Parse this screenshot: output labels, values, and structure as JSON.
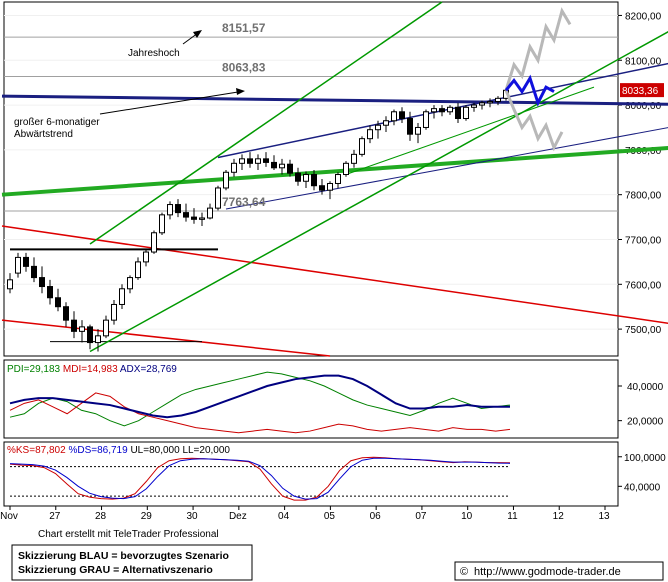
{
  "chart_data": [
    {
      "panel": "price",
      "type": "candlestick",
      "ylim": [
        7440,
        8230
      ],
      "y_ticks": [
        {
          "value": 7500,
          "label": "7500,00"
        },
        {
          "value": 7600,
          "label": "7600,00"
        },
        {
          "value": 7700,
          "label": "7700,00"
        },
        {
          "value": 7800,
          "label": "7800,00"
        },
        {
          "value": 7900,
          "label": "7900,00"
        },
        {
          "value": 8000,
          "label": "8000,00"
        },
        {
          "value": 8100,
          "label": "8100,00"
        },
        {
          "value": 8200,
          "label": "8200,00"
        }
      ],
      "last_price": {
        "value": 8033.36,
        "label": "8033,36"
      },
      "levels": [
        {
          "value": 8151.57,
          "label": "8151,57"
        },
        {
          "value": 8063.83,
          "label": "8063,83"
        },
        {
          "value": 7763.64,
          "label": "7763,64"
        }
      ],
      "annotations": [
        {
          "text": "Jahreshoch"
        },
        {
          "line1": "großer 6-monatiger",
          "line2": "Abwärtstrend"
        }
      ],
      "ohlc": [
        [
          7590,
          7625,
          7580,
          7610
        ],
        [
          7625,
          7670,
          7615,
          7660
        ],
        [
          7660,
          7670,
          7628,
          7640
        ],
        [
          7640,
          7660,
          7605,
          7615
        ],
        [
          7615,
          7640,
          7580,
          7595
        ],
        [
          7595,
          7610,
          7555,
          7570
        ],
        [
          7570,
          7590,
          7540,
          7550
        ],
        [
          7550,
          7560,
          7505,
          7520
        ],
        [
          7520,
          7540,
          7480,
          7495
        ],
        [
          7495,
          7520,
          7470,
          7505
        ],
        [
          7505,
          7510,
          7455,
          7470
        ],
        [
          7470,
          7500,
          7450,
          7485
        ],
        [
          7485,
          7530,
          7480,
          7520
        ],
        [
          7520,
          7565,
          7510,
          7555
        ],
        [
          7555,
          7600,
          7545,
          7590
        ],
        [
          7590,
          7620,
          7580,
          7615
        ],
        [
          7615,
          7660,
          7610,
          7650
        ],
        [
          7650,
          7680,
          7640,
          7672
        ],
        [
          7672,
          7720,
          7668,
          7715
        ],
        [
          7715,
          7760,
          7710,
          7755
        ],
        [
          7755,
          7785,
          7745,
          7778
        ],
        [
          7778,
          7790,
          7750,
          7760
        ],
        [
          7760,
          7780,
          7740,
          7750
        ],
        [
          7750,
          7770,
          7735,
          7745
        ],
        [
          7745,
          7760,
          7730,
          7748
        ],
        [
          7748,
          7780,
          7745,
          7770
        ],
        [
          7770,
          7820,
          7765,
          7815
        ],
        [
          7815,
          7855,
          7810,
          7850
        ],
        [
          7850,
          7880,
          7840,
          7870
        ],
        [
          7870,
          7890,
          7855,
          7880
        ],
        [
          7880,
          7895,
          7860,
          7870
        ],
        [
          7870,
          7890,
          7855,
          7880
        ],
        [
          7880,
          7895,
          7862,
          7872
        ],
        [
          7872,
          7888,
          7855,
          7860
        ],
        [
          7860,
          7880,
          7845,
          7868
        ],
        [
          7868,
          7878,
          7840,
          7848
        ],
        [
          7848,
          7860,
          7820,
          7830
        ],
        [
          7830,
          7852,
          7815,
          7845
        ],
        [
          7845,
          7855,
          7810,
          7820
        ],
        [
          7820,
          7835,
          7800,
          7810
        ],
        [
          7810,
          7830,
          7790,
          7825
        ],
        [
          7825,
          7850,
          7815,
          7845
        ],
        [
          7845,
          7875,
          7840,
          7870
        ],
        [
          7870,
          7900,
          7860,
          7890
        ],
        [
          7890,
          7930,
          7885,
          7925
        ],
        [
          7925,
          7955,
          7915,
          7945
        ],
        [
          7945,
          7965,
          7925,
          7955
        ],
        [
          7955,
          7975,
          7940,
          7965
        ],
        [
          7965,
          7990,
          7955,
          7985
        ],
        [
          7985,
          7995,
          7960,
          7970
        ],
        [
          7970,
          7985,
          7920,
          7935
        ],
        [
          7935,
          7960,
          7915,
          7950
        ],
        [
          7950,
          7990,
          7945,
          7985
        ],
        [
          7985,
          8000,
          7970,
          7992
        ],
        [
          7992,
          8000,
          7975,
          7985
        ],
        [
          7985,
          8000,
          7978,
          7995
        ],
        [
          7995,
          8005,
          7960,
          7970
        ],
        [
          7970,
          8000,
          7965,
          7995
        ],
        [
          7995,
          8005,
          7985,
          8000
        ],
        [
          8000,
          8010,
          7990,
          8005
        ],
        [
          8005,
          8015,
          7995,
          8008
        ],
        [
          8008,
          8020,
          8000,
          8015
        ],
        [
          8015,
          8040,
          8010,
          8033
        ]
      ],
      "scenario_blue": [
        8033,
        8055,
        8030,
        8060,
        8005,
        8040,
        8030
      ],
      "scenario_gray": {
        "up": [
          8033,
          8090,
          8065,
          8130,
          8100,
          8175,
          8145,
          8210,
          8180
        ],
        "down": [
          8033,
          7990,
          7950,
          7975,
          7925,
          7955,
          7905,
          7940
        ]
      }
    },
    {
      "panel": "dmi",
      "type": "line",
      "title": "PDI=29,183 MDI=14,983 ADX=28,769",
      "ylim": [
        10,
        55
      ],
      "y_ticks": [
        {
          "value": 40,
          "label": "40,0000"
        },
        {
          "value": 20,
          "label": "20,0000"
        }
      ],
      "series": [
        {
          "name": "PDI",
          "label": "PDI=29,183",
          "color": "#008000",
          "values": [
            22,
            24,
            30,
            33,
            31,
            26,
            24,
            20,
            17,
            20,
            25,
            30,
            35,
            38,
            40,
            42,
            44,
            46,
            48,
            47,
            45,
            43,
            40,
            36,
            32,
            29,
            27,
            25,
            23,
            26,
            30,
            33,
            30,
            27,
            28,
            29
          ]
        },
        {
          "name": "MDI",
          "label": "MDI=14,983",
          "color": "#cc0000",
          "values": [
            26,
            30,
            32,
            28,
            24,
            30,
            36,
            34,
            28,
            24,
            22,
            20,
            18,
            16,
            15,
            14,
            13,
            14,
            15,
            14,
            13,
            14,
            16,
            18,
            17,
            15,
            14,
            15,
            16,
            15,
            14,
            16,
            15,
            15,
            14,
            15
          ]
        },
        {
          "name": "ADX",
          "label": "ADX=28,769",
          "color": "#000080",
          "values": [
            30,
            32,
            33,
            33,
            32,
            31,
            30,
            29,
            27,
            25,
            23,
            22,
            23,
            25,
            28,
            31,
            34,
            37,
            40,
            42,
            44,
            45,
            46,
            46,
            44,
            40,
            35,
            30,
            27,
            27,
            28,
            28,
            29,
            28,
            28,
            28
          ]
        }
      ]
    },
    {
      "panel": "stochastic",
      "type": "line",
      "title": "%KS=87,802 %DS=86,719 UL=80,000 LL=20,000",
      "ylim": [
        0,
        130
      ],
      "y_ticks": [
        {
          "value": 100,
          "label": "100,0000"
        },
        {
          "value": 40,
          "label": "40,0000"
        }
      ],
      "upper_limit": 80,
      "lower_limit": 20,
      "series": [
        {
          "name": "%KS",
          "label": "%KS=87,802",
          "color": "#cc0000",
          "values": [
            85,
            83,
            82,
            78,
            66,
            45,
            25,
            18,
            15,
            14,
            16,
            25,
            50,
            78,
            92,
            96,
            97,
            96,
            95,
            94,
            92,
            90,
            75,
            45,
            20,
            12,
            12,
            18,
            40,
            72,
            92,
            98,
            99,
            98,
            96,
            95,
            94,
            92,
            90,
            88,
            90,
            89,
            88,
            88,
            87.8
          ]
        },
        {
          "name": "%DS",
          "label": "%DS=86,719",
          "color": "#0000cc",
          "values": [
            86,
            85,
            84,
            81,
            73,
            58,
            40,
            26,
            19,
            16,
            15,
            19,
            35,
            60,
            82,
            92,
            95,
            96,
            95,
            94,
            93,
            91,
            82,
            62,
            36,
            20,
            14,
            15,
            28,
            55,
            80,
            93,
            97,
            97,
            96,
            95,
            94,
            93,
            91,
            89,
            89,
            89,
            88,
            87,
            86.7
          ]
        }
      ]
    },
    {
      "panel": "x-axis",
      "type": "axis",
      "x_ticks": [
        "Nov",
        "27",
        "28",
        "29",
        "30",
        "Dez",
        "04",
        "05",
        "06",
        "07",
        "10",
        "11",
        "12",
        "13"
      ]
    }
  ],
  "footer": {
    "credit": "Chart erstellt mit TeleTrader Professional",
    "legend_line1": "Skizzierung BLAU = bevorzugtes Szenario",
    "legend_line2": "Skizzierung GRAU = Alternativszenario",
    "url": "http://www.godmode-trader.de",
    "copyright_symbol": "©"
  },
  "colors": {
    "bull_candle": "#ffffff",
    "bear_candle": "#000000",
    "green_channel": "#009900",
    "thick_green": "#22aa22",
    "navy_trend": "#1a1f80",
    "red_trend": "#dd0000",
    "scenario_blue": "#1010dd",
    "scenario_gray": "#b8b8b8",
    "last_price_box": "#cc0000"
  }
}
